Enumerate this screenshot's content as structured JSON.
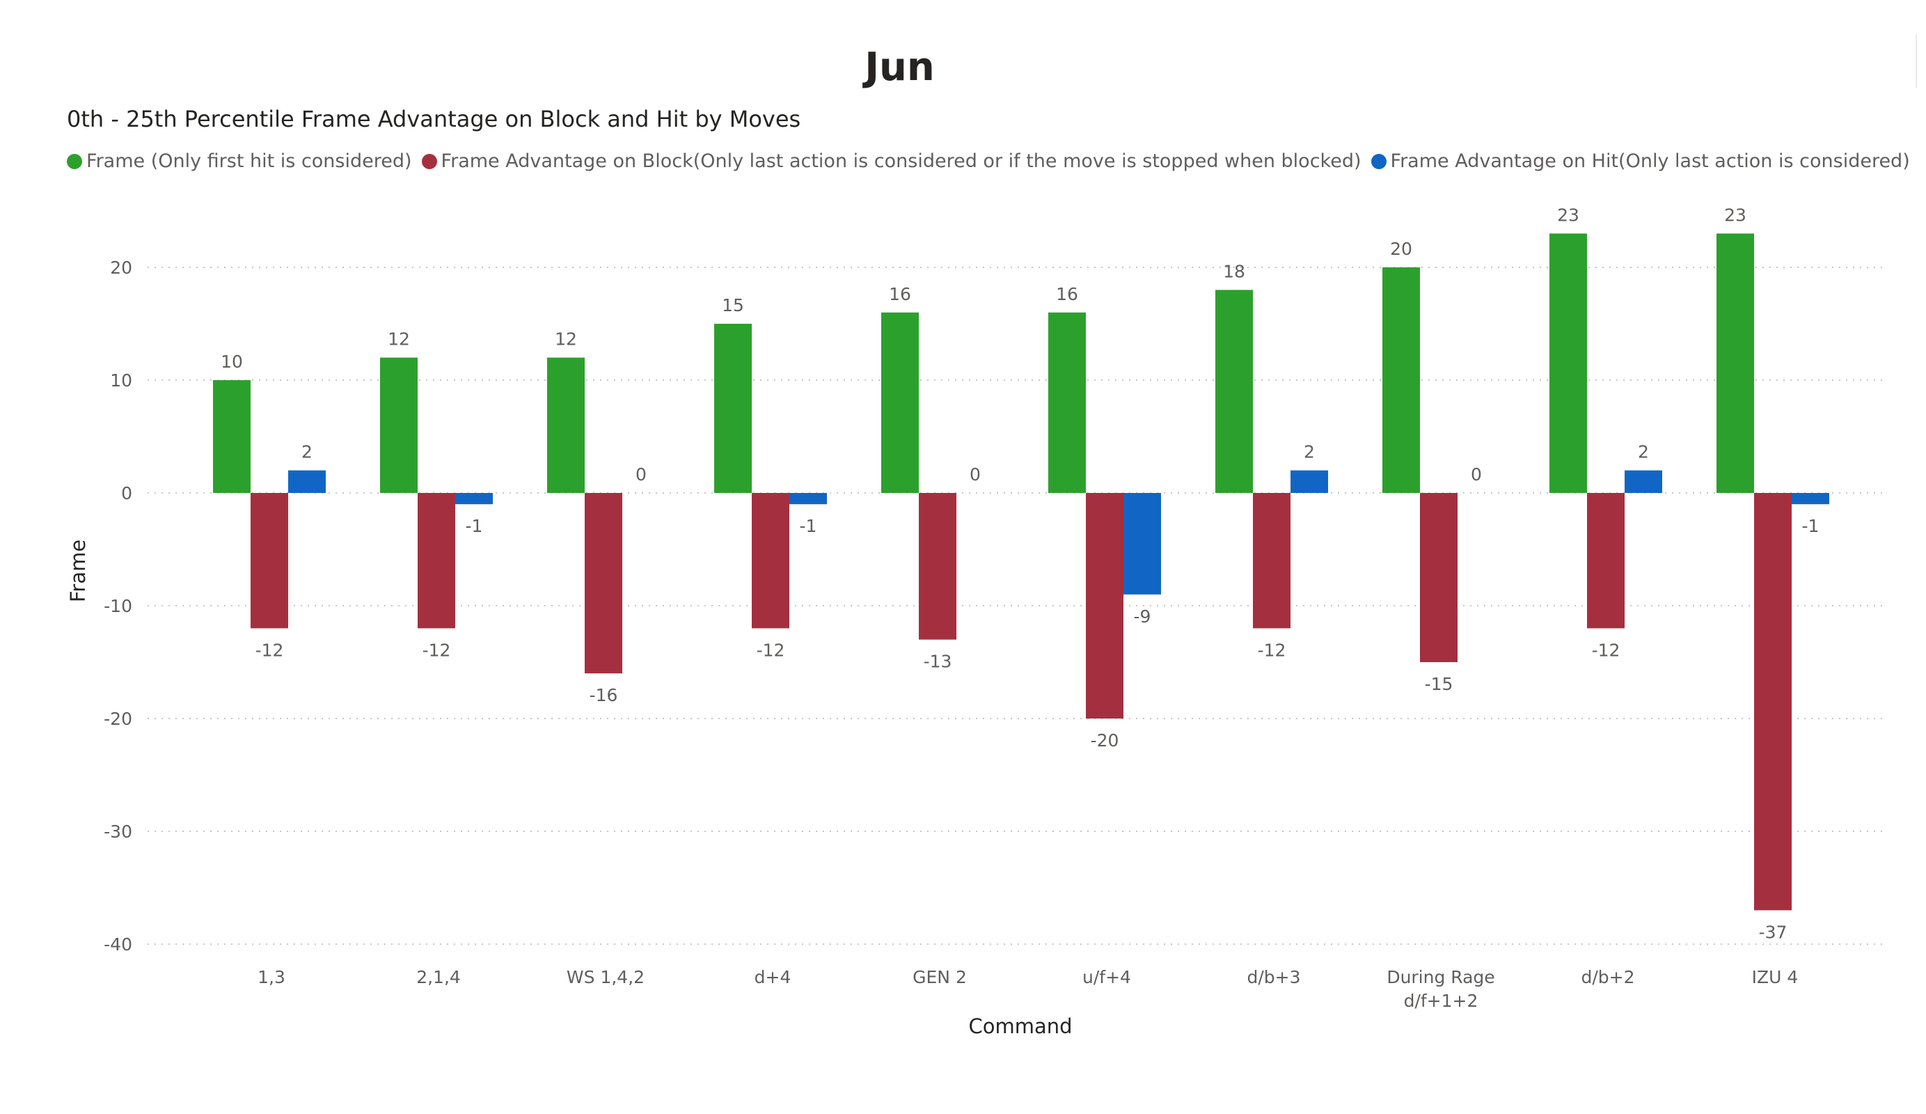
{
  "page_title": "Jun",
  "chart_data": {
    "type": "bar",
    "title": "0th - 25th Percentile Frame Advantage on Block and Hit by Moves",
    "xlabel": "Command",
    "ylabel": "Frame",
    "ylim": [
      -40,
      25
    ],
    "yticks": [
      20,
      10,
      0,
      -10,
      -20,
      -30,
      -40
    ],
    "grid": true,
    "legend": "top-left",
    "categories": [
      [
        "1,3"
      ],
      [
        "2,1,4"
      ],
      [
        "WS 1,4,2"
      ],
      [
        "d+4"
      ],
      [
        "GEN 2"
      ],
      [
        "u/f+4"
      ],
      [
        "d/b+3"
      ],
      [
        "During Rage",
        "d/f+1+2"
      ],
      [
        "d/b+2"
      ],
      [
        "IZU 4"
      ]
    ],
    "series": [
      {
        "name": "Frame (Only first hit is considered)",
        "color": "#2ca02c",
        "values": [
          10,
          12,
          12,
          15,
          16,
          16,
          18,
          20,
          23,
          23
        ]
      },
      {
        "name": "Frame Advantage on Block(Only last action is considered or if the move is stopped when blocked)",
        "color": "#a4303f",
        "values": [
          -12,
          -12,
          -16,
          -12,
          -13,
          -20,
          -12,
          -15,
          -12,
          -37
        ]
      },
      {
        "name": "Frame Advantage on Hit(Only last action is considered)",
        "color": "#1166c5",
        "values": [
          2,
          -1,
          0,
          -1,
          0,
          -9,
          2,
          0,
          2,
          -1
        ]
      }
    ]
  }
}
